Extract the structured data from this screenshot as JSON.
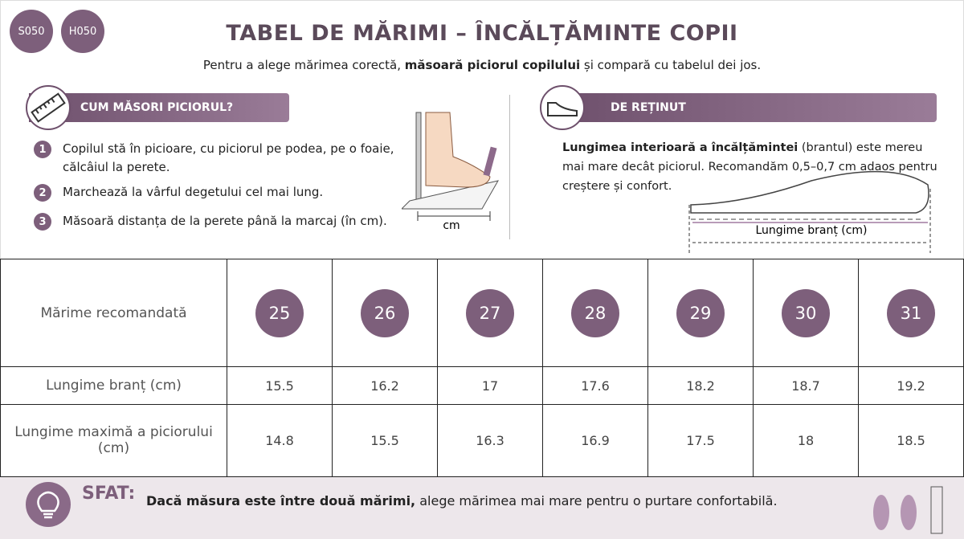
{
  "badges": [
    "S050",
    "H050"
  ],
  "header": {
    "title": "TABEL DE MĂRIMI – ÎNCĂLȚĂMINTE COPII",
    "subtitle_parts": [
      "Pentru a alege mărimea corectă, ",
      "măsoară piciorul copilului",
      " și compară cu tabelul dei jos."
    ]
  },
  "how_to": {
    "title": "CUM MĂSORI PICIORUL?",
    "steps": [
      {
        "number": 1,
        "text": "Copilul stă în picioare, cu piciorul pe podea, pe o foaie, călcâiul la perete."
      },
      {
        "number": 2,
        "text": "Marchează la vârful degetului cel mai lung."
      },
      {
        "number": 3,
        "text": "Măsoară distanța de la perete până la marcaj (în cm)."
      }
    ],
    "diagram_label": "cm"
  },
  "remember": {
    "title": "DE REȚINUT",
    "text_parts": [
      "Lungimea interioară a încălțămintei",
      " (brantul) este mereu mai mare decât piciorul. Recomandăm 0,5–0,7 cm adaos pentru creștere și confort."
    ],
    "diagram_label": "Lungime branț (cm)"
  },
  "table": {
    "rows": [
      [
        "Mărime recomandată",
        25,
        26,
        27,
        28,
        29,
        30,
        31
      ],
      [
        "Lungime branț (cm)",
        15.5,
        16.2,
        17,
        17.6,
        18.2,
        18.7,
        19.2
      ],
      [
        "Lungime maximă a piciorului (cm)",
        14.8,
        15.5,
        16.3,
        16.9,
        17.5,
        18,
        18.5
      ]
    ]
  },
  "tip": {
    "label": "SFAT:",
    "text_parts": [
      "Dacă măsura este între două mărimi,",
      " alege mărimea mai mare pentru o purtare confortabilă."
    ]
  }
}
